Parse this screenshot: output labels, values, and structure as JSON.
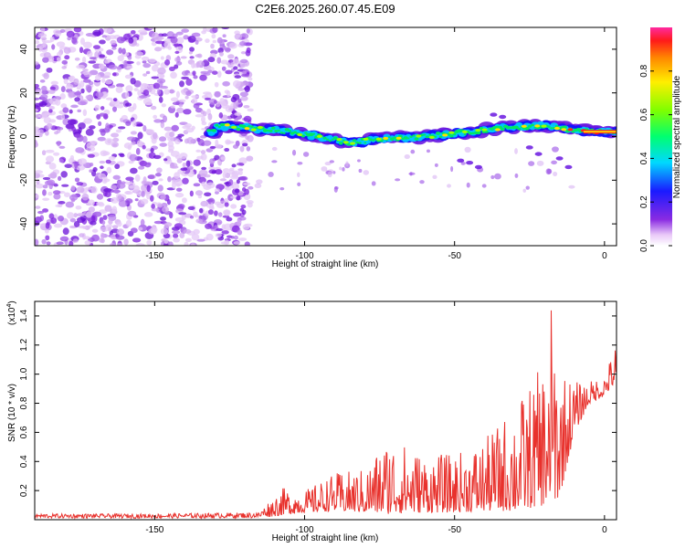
{
  "figure": {
    "title": "C2E6.2025.260.07.45.E09"
  },
  "chart_data": [
    {
      "type": "heatmap",
      "xlabel": "Height of straight line (km)",
      "ylabel": "Frequency (Hz)",
      "xlim": [
        -190,
        4
      ],
      "ylim": [
        -50,
        50
      ],
      "xticks": [
        -150,
        -100,
        -50,
        0
      ],
      "yticks": [
        -40,
        -20,
        0,
        20,
        40
      ],
      "xtick_labels": [
        "-150",
        "-100",
        "-50",
        "0"
      ],
      "ytick_labels": [
        "-40",
        "-20",
        "0",
        "20",
        "40"
      ],
      "description_of_trace": [
        {
          "x": -130,
          "y": 5
        },
        {
          "x": -110,
          "y": 3
        },
        {
          "x": -95,
          "y": 0
        },
        {
          "x": -85,
          "y": -3
        },
        {
          "x": -75,
          "y": -1
        },
        {
          "x": -60,
          "y": 0
        },
        {
          "x": -45,
          "y": 2
        },
        {
          "x": -35,
          "y": 4
        },
        {
          "x": -20,
          "y": 5
        },
        {
          "x": -10,
          "y": 3
        },
        {
          "x": 0,
          "y": 2
        },
        {
          "x": 4,
          "y": 2
        }
      ],
      "colorbar": {
        "label": "Normalized spectral amplitude",
        "range": [
          0,
          1
        ],
        "ticks": [
          0,
          0.2,
          0.4,
          0.6,
          0.8
        ],
        "tick_labels": [
          "0.0",
          "0.2",
          "0.4",
          "0.6",
          "0.8"
        ]
      }
    },
    {
      "type": "line",
      "xlabel": "Height of straight line (km)",
      "ylabel": "SNR (10 * v/v)",
      "exponent_label": "(x10",
      "exponent_value": "4",
      "exponent_close": ")",
      "xlim": [
        -190,
        4
      ],
      "ylim": [
        0,
        1.5
      ],
      "xticks": [
        -150,
        -100,
        -50,
        0
      ],
      "yticks": [
        0.2,
        0.4,
        0.6,
        0.8,
        1.0,
        1.2,
        1.4
      ],
      "xtick_labels": [
        "-150",
        "-100",
        "-50",
        "0"
      ],
      "ytick_labels": [
        "0.2",
        "0.4",
        "0.6",
        "0.8",
        "1.0",
        "1.2",
        "1.4"
      ],
      "series": [
        {
          "name": "SNR",
          "color": "#e8312c",
          "envelope": {
            "x": [
              -190,
              -150,
              -115,
              -108,
              -100,
              -90,
              -80,
              -72,
              -60,
              -50,
              -40,
              -30,
              -25,
              -20,
              -18,
              -15,
              -10,
              -5,
              0,
              4
            ],
            "low": [
              0.01,
              0.01,
              0.01,
              0.03,
              0.05,
              0.06,
              0.05,
              0.04,
              0.05,
              0.05,
              0.06,
              0.06,
              0.08,
              0.1,
              0.12,
              0.15,
              0.6,
              0.8,
              0.85,
              0.95
            ],
            "high": [
              0.04,
              0.04,
              0.05,
              0.22,
              0.2,
              0.32,
              0.35,
              0.58,
              0.45,
              0.45,
              0.55,
              0.8,
              0.92,
              1.1,
              1.47,
              1.05,
              0.95,
              0.95,
              1.0,
              1.22
            ]
          }
        }
      ]
    }
  ]
}
